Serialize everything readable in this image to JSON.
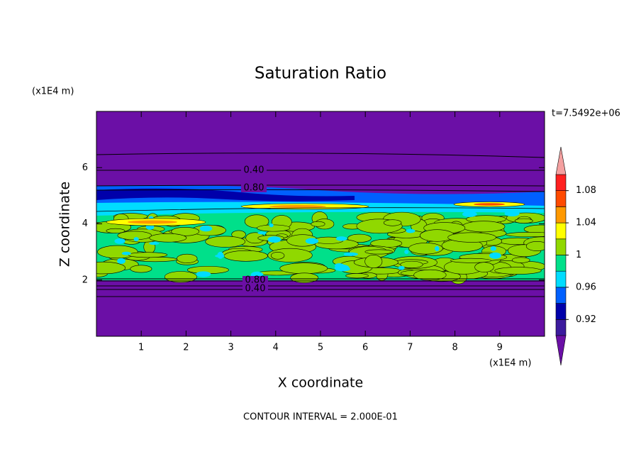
{
  "chart_data": {
    "type": "contour",
    "title": "Saturation Ratio",
    "x_label": "X coordinate",
    "y_label": "Z coordinate",
    "x_unit": "(x1E4 m)",
    "y_unit": "(x1E4 m)",
    "time_label": "t=7.5492e+06",
    "footer": "CONTOUR INTERVAL = 2.000E-01",
    "xlim": [
      0,
      10
    ],
    "xticks": [
      1,
      2,
      3,
      4,
      5,
      6,
      7,
      8,
      9
    ],
    "ylim": [
      0,
      8
    ],
    "yticks": [
      2,
      4,
      6
    ],
    "contour_labels": [
      {
        "value": 0.4,
        "label": "0.40"
      },
      {
        "value": 0.8,
        "label": "0.80"
      },
      {
        "value": 0.8,
        "label": "0.80"
      },
      {
        "value": 0.4,
        "label": "0.40"
      }
    ],
    "colorbar": {
      "bounds": [
        0.9,
        0.92,
        0.94,
        0.96,
        0.98,
        1,
        1.02,
        1.04,
        1.06,
        1.08,
        1.1
      ],
      "colors": [
        "#3c1b9e",
        "#0000aa",
        "#0060ff",
        "#00dcff",
        "#00e08a",
        "#90d800",
        "#ffff00",
        "#ff9900",
        "#ff4a00",
        "#ff2020"
      ],
      "under_color": "#6b0fa6",
      "over_color": "#f4a0a0",
      "ticks": [
        0.92,
        0.96,
        1,
        1.04,
        1.08
      ]
    }
  }
}
